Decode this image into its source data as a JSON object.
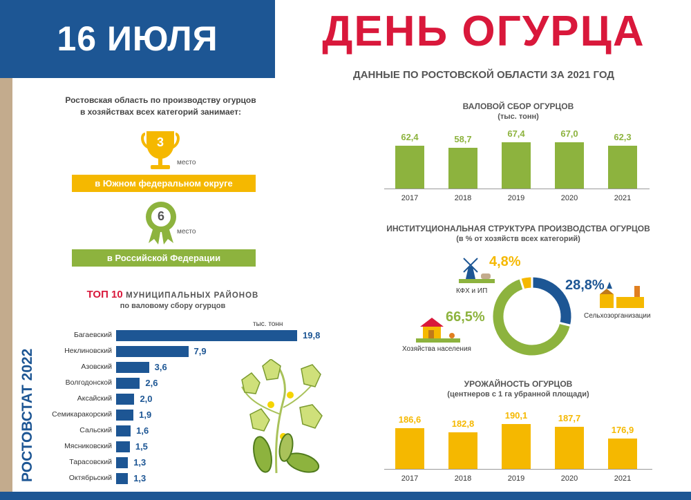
{
  "header": {
    "date": "16 ИЮЛЯ",
    "title": "ДЕНЬ ОГУРЦА",
    "subtitle": "ДАННЫЕ ПО РОСТОВСКОЙ ОБЛАСТИ ЗА 2021 ГОД"
  },
  "brand": "РОСТОВСТАТ 2022",
  "rankings": {
    "intro_line1": "Ростовская область по производству огурцов",
    "intro_line2": "в хозяйствах всех категорий занимает:",
    "items": [
      {
        "place": "3",
        "mesto_label": "место",
        "region": "в Южном федеральном округе",
        "icon": "trophy-icon"
      },
      {
        "place": "6",
        "mesto_label": "место",
        "region": "в Российской Федерации",
        "icon": "rosette-icon"
      }
    ]
  },
  "colors": {
    "blue": "#1d5694",
    "red": "#d9183b",
    "green": "#8db33e",
    "yellow": "#f5b800",
    "strip": "#c3ab8d"
  },
  "chart_data": [
    {
      "type": "bar",
      "title": "ВАЛОВОЙ СБОР ОГУРЦОВ",
      "subtitle": "(тыс. тонн)",
      "categories": [
        "2017",
        "2018",
        "2019",
        "2020",
        "2021"
      ],
      "values": [
        62.4,
        58.7,
        67.4,
        67.0,
        62.3
      ],
      "value_labels": [
        "62,4",
        "58,7",
        "67,4",
        "67,0",
        "62,3"
      ],
      "ylim": [
        0,
        100
      ],
      "color": "#8db33e"
    },
    {
      "type": "pie",
      "title": "ИНСТИТУЦИОНАЛЬНАЯ СТРУКТУРА ПРОИЗВОДСТВА ОГУРЦОВ",
      "subtitle": "(в % от хозяйств всех категорий)",
      "slices": [
        {
          "label": "Сельхозорганизации",
          "value": 28.8,
          "value_label": "28,8%",
          "color": "#1d5694"
        },
        {
          "label": "Хозяйства населения",
          "value": 66.5,
          "value_label": "66,5%",
          "color": "#8db33e"
        },
        {
          "label": "КФХ и ИП",
          "value": 4.8,
          "value_label": "4,8%",
          "color": "#f5b800"
        }
      ]
    },
    {
      "type": "bar",
      "title": "УРОЖАЙНОСТЬ ОГУРЦОВ",
      "subtitle": "(центнеров с 1 га убранной площади)",
      "categories": [
        "2017",
        "2018",
        "2019",
        "2020",
        "2021"
      ],
      "values": [
        186.6,
        182.8,
        190.1,
        187.7,
        176.9
      ],
      "value_labels": [
        "186,6",
        "182,8",
        "190,1",
        "187,7",
        "176,9"
      ],
      "ylim": [
        150,
        192
      ],
      "color": "#f5b800"
    },
    {
      "type": "bar",
      "orientation": "horizontal",
      "title_highlight": "ТОП 10",
      "title_rest": "МУНИЦИПАЛЬНЫХ РАЙОНОВ",
      "subtitle": "по валовому сбору огурцов",
      "unit_label": "тыс. тонн",
      "categories": [
        "Багаевский",
        "Неклиновский",
        "Азовский",
        "Волгодонской",
        "Аксайский",
        "Семикаракорский",
        "Сальский",
        "Мясниковский",
        "Тарасовский",
        "Октябрьский"
      ],
      "values": [
        19.8,
        7.9,
        3.6,
        2.6,
        2.0,
        1.9,
        1.6,
        1.5,
        1.3,
        1.3
      ],
      "value_labels": [
        "19,8",
        "7,9",
        "3,6",
        "2,6",
        "2,0",
        "1,9",
        "1,6",
        "1,5",
        "1,3",
        "1,3"
      ],
      "xlim": [
        0,
        19.8
      ],
      "color": "#1d5694"
    }
  ]
}
